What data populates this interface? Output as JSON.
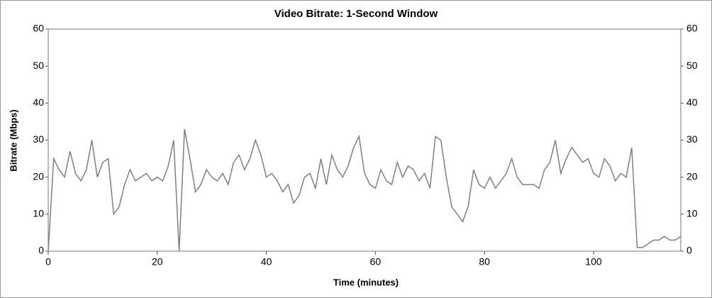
{
  "chart_data": {
    "type": "line",
    "title": "Video Bitrate: 1-Second Window",
    "x_label": "Time (minutes)",
    "y_label": "Bitrate (Mbps)",
    "x": [
      0,
      1,
      2,
      3,
      4,
      5,
      6,
      7,
      8,
      9,
      10,
      11,
      12,
      13,
      14,
      15,
      16,
      17,
      18,
      19,
      20,
      21,
      22,
      23,
      24,
      25,
      26,
      27,
      28,
      29,
      30,
      31,
      32,
      33,
      34,
      35,
      36,
      37,
      38,
      39,
      40,
      41,
      42,
      43,
      44,
      45,
      46,
      47,
      48,
      49,
      50,
      51,
      52,
      53,
      54,
      55,
      56,
      57,
      58,
      59,
      60,
      61,
      62,
      63,
      64,
      65,
      66,
      67,
      68,
      69,
      70,
      71,
      72,
      73,
      74,
      75,
      76,
      77,
      78,
      79,
      80,
      81,
      82,
      83,
      84,
      85,
      86,
      87,
      88,
      89,
      90,
      91,
      92,
      93,
      94,
      95,
      96,
      97,
      98,
      99,
      100,
      101,
      102,
      103,
      104,
      105,
      106,
      107,
      108,
      109,
      110,
      111,
      112,
      113,
      114,
      115,
      116
    ],
    "series": [
      {
        "name": "Bitrate",
        "color": "#7f7f7f",
        "values": [
          0,
          25,
          22,
          20,
          27,
          21,
          19,
          22,
          30,
          20,
          24,
          25,
          10,
          12,
          18,
          22,
          19,
          20,
          21,
          19,
          20,
          19,
          23,
          30,
          0,
          33,
          25,
          16,
          18,
          22,
          20,
          19,
          21,
          18,
          24,
          26,
          22,
          25,
          30,
          26,
          20,
          21,
          19,
          16,
          18,
          13,
          15,
          20,
          21,
          17,
          25,
          18,
          26,
          22,
          20,
          23,
          28,
          31,
          21,
          18,
          17,
          22,
          19,
          18,
          24,
          20,
          23,
          22,
          19,
          21,
          17,
          31,
          30,
          20,
          12,
          10,
          8,
          12,
          22,
          18,
          17,
          20,
          17,
          19,
          21,
          25,
          20,
          18,
          18,
          18,
          17,
          22,
          24,
          30,
          21,
          25,
          28,
          26,
          24,
          25,
          21,
          20,
          25,
          23,
          19,
          21,
          20,
          28,
          1,
          1,
          2,
          3,
          3,
          4,
          3,
          3,
          4
        ]
      }
    ],
    "xlim": [
      0,
      116
    ],
    "xticks": [
      0,
      20,
      40,
      60,
      80,
      100
    ],
    "ylim": [
      0,
      60
    ],
    "yticks": [
      0,
      10,
      20,
      30,
      40,
      50,
      60
    ],
    "grid": false
  }
}
